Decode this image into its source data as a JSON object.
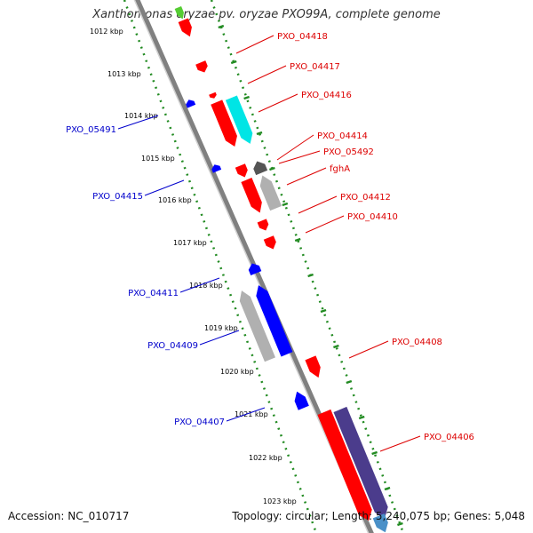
{
  "title": "Xanthomonas oryzae pv. oryzae PXO99A, complete genome",
  "accession_text": "Accession: NC_010717",
  "topology_text": "Topology: circular; Length: 5,240,075 bp; Genes: 5,048",
  "colors": {
    "backbone": "#808080",
    "ticks": "#228b22",
    "forward_label": "#dd0000",
    "reverse_label": "#0000cc",
    "red_gene": "#ff0000",
    "blue_gene": "#0000ff",
    "cyan_gene": "#00e5e5",
    "gray_gene": "#b0b0b0",
    "dark_gene": "#555555",
    "purple_gene": "#4b3c8c"
  },
  "kbp_labels": [
    "1012 kbp",
    "1013 kbp",
    "1014 kbp",
    "1015 kbp",
    "1016 kbp",
    "1017 kbp",
    "1018 kbp",
    "1019 kbp",
    "1020 kbp",
    "1021 kbp",
    "1022 kbp",
    "1023 kbp"
  ],
  "gene_labels_forward": [
    "PXO_04418",
    "PXO_04417",
    "PXO_04416",
    "PXO_04414",
    "PXO_05492",
    "fghA",
    "PXO_04412",
    "PXO_04410",
    "PXO_04408",
    "PXO_04406"
  ],
  "gene_labels_reverse": [
    "PXO_05491",
    "PXO_04415",
    "PXO_04411",
    "PXO_04409",
    "PXO_04407"
  ]
}
